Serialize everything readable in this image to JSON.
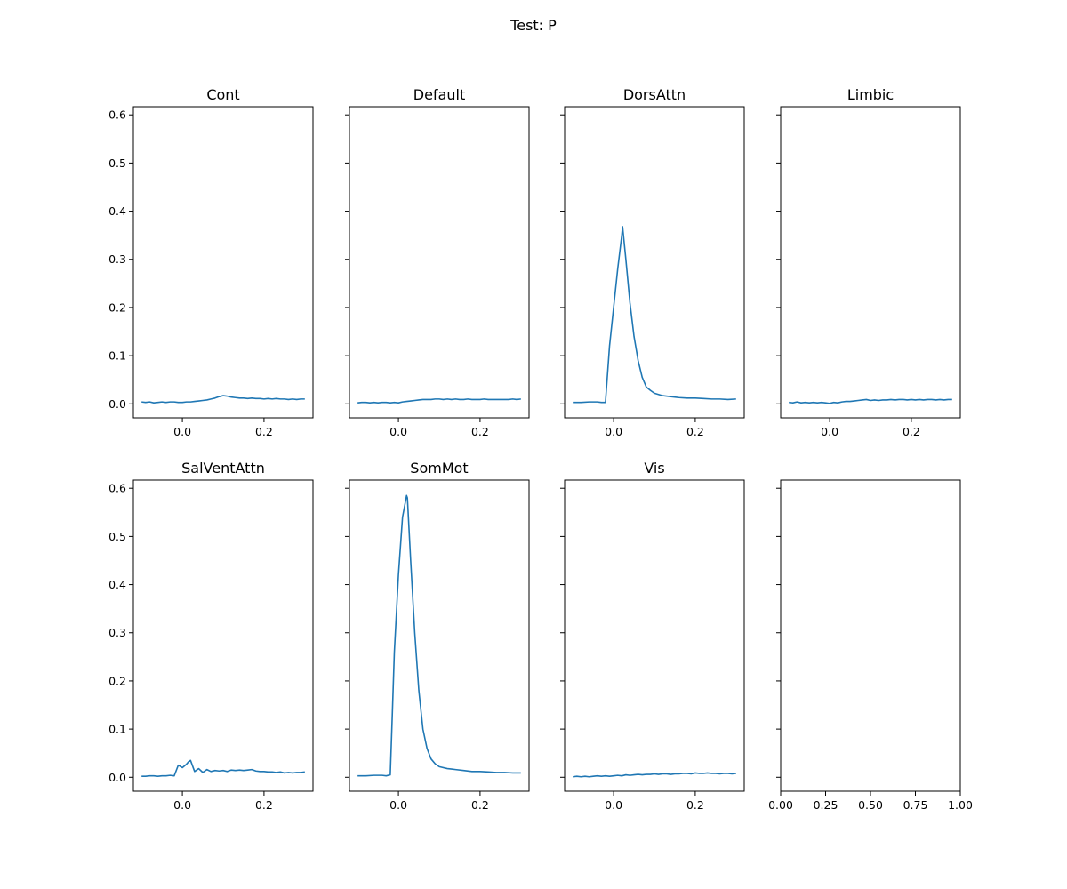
{
  "figure": {
    "suptitle": "Test: P"
  },
  "shared_y": {
    "ylim": [
      -0.029,
      0.617
    ],
    "ticks": [
      0.0,
      0.1,
      0.2,
      0.3,
      0.4,
      0.5,
      0.6
    ],
    "tick_labels": [
      "0.0",
      "0.1",
      "0.2",
      "0.3",
      "0.4",
      "0.5",
      "0.6"
    ]
  },
  "colors": {
    "line": "#1f77b4",
    "axes": "#000000"
  },
  "chart_data": [
    {
      "type": "line",
      "title": "Cont",
      "xlim": [
        -0.12,
        0.32
      ],
      "xticks": [
        0.0,
        0.2
      ],
      "xtick_labels": [
        "0.0",
        "0.2"
      ],
      "series": [
        {
          "x": [
            -0.1,
            -0.09,
            -0.08,
            -0.07,
            -0.06,
            -0.05,
            -0.04,
            -0.03,
            -0.02,
            -0.01,
            0.0,
            0.01,
            0.02,
            0.03,
            0.04,
            0.05,
            0.06,
            0.07,
            0.08,
            0.09,
            0.1,
            0.11,
            0.12,
            0.13,
            0.14,
            0.15,
            0.16,
            0.17,
            0.18,
            0.19,
            0.2,
            0.21,
            0.22,
            0.23,
            0.24,
            0.25,
            0.26,
            0.27,
            0.28,
            0.29,
            0.3
          ],
          "y": [
            0.004,
            0.003,
            0.004,
            0.002,
            0.003,
            0.004,
            0.003,
            0.004,
            0.004,
            0.003,
            0.003,
            0.004,
            0.004,
            0.005,
            0.006,
            0.007,
            0.008,
            0.01,
            0.012,
            0.015,
            0.017,
            0.016,
            0.014,
            0.013,
            0.012,
            0.012,
            0.011,
            0.012,
            0.011,
            0.011,
            0.01,
            0.011,
            0.01,
            0.011,
            0.01,
            0.01,
            0.009,
            0.01,
            0.009,
            0.01,
            0.01
          ]
        }
      ]
    },
    {
      "type": "line",
      "title": "Default",
      "xlim": [
        -0.12,
        0.32
      ],
      "xticks": [
        0.0,
        0.2
      ],
      "xtick_labels": [
        "0.0",
        "0.2"
      ],
      "series": [
        {
          "x": [
            -0.1,
            -0.09,
            -0.08,
            -0.07,
            -0.06,
            -0.05,
            -0.04,
            -0.03,
            -0.02,
            -0.01,
            0.0,
            0.01,
            0.02,
            0.03,
            0.04,
            0.05,
            0.06,
            0.07,
            0.08,
            0.09,
            0.1,
            0.11,
            0.12,
            0.13,
            0.14,
            0.15,
            0.16,
            0.17,
            0.18,
            0.19,
            0.2,
            0.21,
            0.22,
            0.23,
            0.24,
            0.25,
            0.26,
            0.27,
            0.28,
            0.29,
            0.3
          ],
          "y": [
            0.002,
            0.003,
            0.003,
            0.002,
            0.003,
            0.002,
            0.003,
            0.003,
            0.002,
            0.003,
            0.002,
            0.004,
            0.005,
            0.006,
            0.007,
            0.008,
            0.009,
            0.009,
            0.009,
            0.01,
            0.01,
            0.009,
            0.01,
            0.009,
            0.01,
            0.009,
            0.009,
            0.01,
            0.009,
            0.009,
            0.009,
            0.01,
            0.009,
            0.009,
            0.009,
            0.009,
            0.009,
            0.009,
            0.01,
            0.009,
            0.01
          ]
        }
      ]
    },
    {
      "type": "line",
      "title": "DorsAttn",
      "xlim": [
        -0.12,
        0.32
      ],
      "xticks": [
        0.0,
        0.2
      ],
      "xtick_labels": [
        "0.0",
        "0.2"
      ],
      "series": [
        {
          "x": [
            -0.1,
            -0.08,
            -0.06,
            -0.04,
            -0.03,
            -0.02,
            -0.01,
            0.0,
            0.01,
            0.02,
            0.022,
            0.03,
            0.04,
            0.05,
            0.06,
            0.07,
            0.08,
            0.09,
            0.1,
            0.12,
            0.14,
            0.16,
            0.18,
            0.2,
            0.22,
            0.24,
            0.26,
            0.28,
            0.3
          ],
          "y": [
            0.003,
            0.003,
            0.004,
            0.004,
            0.003,
            0.003,
            0.12,
            0.2,
            0.28,
            0.35,
            0.368,
            0.3,
            0.21,
            0.14,
            0.09,
            0.055,
            0.035,
            0.028,
            0.022,
            0.017,
            0.015,
            0.013,
            0.012,
            0.012,
            0.011,
            0.01,
            0.01,
            0.009,
            0.01
          ]
        }
      ]
    },
    {
      "type": "line",
      "title": "Limbic",
      "xlim": [
        -0.12,
        0.32
      ],
      "xticks": [
        0.0,
        0.2
      ],
      "xtick_labels": [
        "0.0",
        "0.2"
      ],
      "series": [
        {
          "x": [
            -0.1,
            -0.09,
            -0.08,
            -0.07,
            -0.06,
            -0.05,
            -0.04,
            -0.03,
            -0.02,
            -0.01,
            0.0,
            0.01,
            0.02,
            0.03,
            0.04,
            0.05,
            0.06,
            0.07,
            0.08,
            0.09,
            0.1,
            0.11,
            0.12,
            0.13,
            0.14,
            0.15,
            0.16,
            0.17,
            0.18,
            0.19,
            0.2,
            0.21,
            0.22,
            0.23,
            0.24,
            0.25,
            0.26,
            0.27,
            0.28,
            0.29,
            0.3
          ],
          "y": [
            0.003,
            0.002,
            0.004,
            0.002,
            0.003,
            0.002,
            0.003,
            0.002,
            0.003,
            0.002,
            0.001,
            0.003,
            0.002,
            0.004,
            0.005,
            0.005,
            0.006,
            0.007,
            0.008,
            0.009,
            0.007,
            0.008,
            0.007,
            0.008,
            0.008,
            0.009,
            0.008,
            0.009,
            0.009,
            0.008,
            0.009,
            0.008,
            0.009,
            0.008,
            0.009,
            0.009,
            0.008,
            0.009,
            0.008,
            0.009,
            0.009
          ]
        }
      ]
    },
    {
      "type": "line",
      "title": "SalVentAttn",
      "xlim": [
        -0.12,
        0.32
      ],
      "xticks": [
        0.0,
        0.2
      ],
      "xtick_labels": [
        "0.0",
        "0.2"
      ],
      "series": [
        {
          "x": [
            -0.1,
            -0.09,
            -0.08,
            -0.07,
            -0.06,
            -0.05,
            -0.04,
            -0.03,
            -0.02,
            -0.01,
            0.0,
            0.01,
            0.015,
            0.02,
            0.03,
            0.04,
            0.05,
            0.06,
            0.07,
            0.08,
            0.09,
            0.1,
            0.11,
            0.12,
            0.13,
            0.14,
            0.15,
            0.16,
            0.17,
            0.18,
            0.19,
            0.2,
            0.21,
            0.22,
            0.23,
            0.24,
            0.25,
            0.26,
            0.27,
            0.28,
            0.29,
            0.3
          ],
          "y": [
            0.002,
            0.002,
            0.003,
            0.003,
            0.002,
            0.003,
            0.003,
            0.004,
            0.003,
            0.025,
            0.02,
            0.027,
            0.032,
            0.035,
            0.012,
            0.018,
            0.01,
            0.016,
            0.012,
            0.014,
            0.013,
            0.014,
            0.012,
            0.015,
            0.014,
            0.015,
            0.014,
            0.015,
            0.016,
            0.013,
            0.012,
            0.012,
            0.011,
            0.011,
            0.01,
            0.011,
            0.009,
            0.01,
            0.009,
            0.01,
            0.01,
            0.011
          ]
        }
      ]
    },
    {
      "type": "line",
      "title": "SomMot",
      "xlim": [
        -0.12,
        0.32
      ],
      "xticks": [
        0.0,
        0.2
      ],
      "xtick_labels": [
        "0.0",
        "0.2"
      ],
      "series": [
        {
          "x": [
            -0.1,
            -0.08,
            -0.06,
            -0.04,
            -0.03,
            -0.02,
            -0.015,
            -0.01,
            0.0,
            0.01,
            0.02,
            0.022,
            0.03,
            0.04,
            0.05,
            0.06,
            0.07,
            0.08,
            0.09,
            0.1,
            0.12,
            0.14,
            0.16,
            0.18,
            0.2,
            0.22,
            0.24,
            0.26,
            0.28,
            0.3
          ],
          "y": [
            0.003,
            0.003,
            0.004,
            0.004,
            0.003,
            0.005,
            0.13,
            0.26,
            0.42,
            0.54,
            0.585,
            0.58,
            0.45,
            0.3,
            0.18,
            0.1,
            0.06,
            0.038,
            0.028,
            0.022,
            0.018,
            0.016,
            0.014,
            0.012,
            0.012,
            0.011,
            0.01,
            0.01,
            0.009,
            0.009
          ]
        }
      ]
    },
    {
      "type": "line",
      "title": "Vis",
      "xlim": [
        -0.12,
        0.32
      ],
      "xticks": [
        0.0,
        0.2
      ],
      "xtick_labels": [
        "0.0",
        "0.2"
      ],
      "series": [
        {
          "x": [
            -0.1,
            -0.09,
            -0.08,
            -0.07,
            -0.06,
            -0.05,
            -0.04,
            -0.03,
            -0.02,
            -0.01,
            0.0,
            0.01,
            0.02,
            0.03,
            0.04,
            0.05,
            0.06,
            0.07,
            0.08,
            0.09,
            0.1,
            0.11,
            0.12,
            0.13,
            0.14,
            0.15,
            0.16,
            0.17,
            0.18,
            0.19,
            0.2,
            0.21,
            0.22,
            0.23,
            0.24,
            0.25,
            0.26,
            0.27,
            0.28,
            0.29,
            0.3
          ],
          "y": [
            0.001,
            0.002,
            0.001,
            0.002,
            0.001,
            0.002,
            0.003,
            0.002,
            0.003,
            0.002,
            0.003,
            0.004,
            0.003,
            0.005,
            0.004,
            0.005,
            0.006,
            0.005,
            0.006,
            0.006,
            0.007,
            0.006,
            0.007,
            0.007,
            0.006,
            0.007,
            0.007,
            0.008,
            0.008,
            0.007,
            0.009,
            0.008,
            0.008,
            0.009,
            0.008,
            0.008,
            0.007,
            0.008,
            0.008,
            0.007,
            0.008
          ]
        }
      ]
    },
    {
      "type": "line",
      "title": "",
      "xlim": [
        0.0,
        1.0
      ],
      "xticks": [
        0.0,
        0.25,
        0.5,
        0.75,
        1.0
      ],
      "xtick_labels": [
        "0.00",
        "0.25",
        "0.50",
        "0.75",
        "1.00"
      ],
      "series": []
    }
  ]
}
